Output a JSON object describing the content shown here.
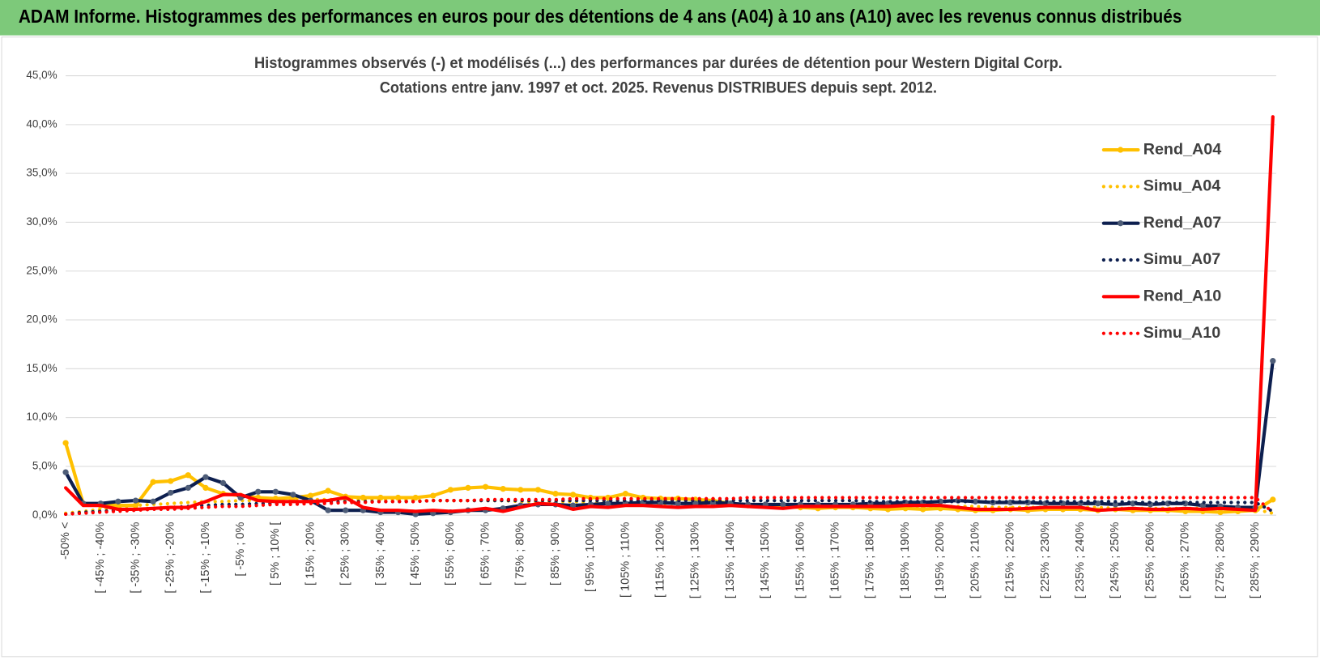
{
  "header": {
    "title": "ADAM Informe. Histogrammes des performances en euros pour des détentions de 4 ans (A04) à 10 ans (A10) avec les revenus connus distribués"
  },
  "chart_data": {
    "type": "line",
    "title": "Histogrammes observés (-) et modélisés (...) des performances par durées de détention pour Western Digital Corp.",
    "subtitle": "Cotations entre janv. 1997 et oct. 2025.  Revenus DISTRIBUES depuis sept. 2012.",
    "categories": [
      "-50% <",
      null,
      "[ -45% ; -40%",
      null,
      "[ -35% ; -30%",
      null,
      "[ -25% ; -20%",
      null,
      "[ -15% ; -10%",
      null,
      "[ -5% ; 0%",
      null,
      "[ 5% ; 10% [",
      null,
      "[ 15% ; 20%",
      null,
      "[ 25% ; 30%",
      null,
      "[ 35% ; 40%",
      null,
      "[ 45% ; 50%",
      null,
      "[ 55% ; 60%",
      null,
      "[ 65% ; 70%",
      null,
      "[ 75% ; 80%",
      null,
      "[ 85% ; 90%",
      null,
      "[ 95% ; 100%",
      null,
      "[ 105% ; 110%",
      null,
      "[ 115% ; 120%",
      null,
      "[ 125% ; 130%",
      null,
      "[ 135% ; 140%",
      null,
      "[ 145% ; 150%",
      null,
      "[ 155% ; 160%",
      null,
      "[ 165% ; 170%",
      null,
      "[ 175% ; 180%",
      null,
      "[ 185% ; 190%",
      null,
      "[ 195% ; 200%",
      null,
      "[ 205% ; 210%",
      null,
      "[ 215% ; 220%",
      null,
      "[ 225% ; 230%",
      null,
      "[ 235% ; 240%",
      null,
      "[ 245% ; 250%",
      null,
      "[ 255% ; 260%",
      null,
      "[ 265% ; 270%",
      null,
      "[ 275% ; 280%",
      null,
      "[ 285% ; 290%",
      null
    ],
    "series": [
      {
        "name": "Rend_A04",
        "color": "#ffc000",
        "dotted": false,
        "marker": true,
        "values": [
          7.4,
          1.2,
          1.0,
          1.0,
          1.0,
          3.4,
          3.5,
          4.1,
          2.8,
          2.2,
          2.0,
          1.8,
          1.7,
          1.8,
          2.0,
          2.5,
          1.9,
          1.8,
          1.8,
          1.8,
          1.8,
          2.0,
          2.6,
          2.8,
          2.9,
          2.7,
          2.6,
          2.6,
          2.2,
          2.1,
          1.8,
          1.8,
          2.2,
          1.8,
          1.7,
          1.7,
          1.6,
          1.5,
          1.2,
          1.0,
          1.0,
          0.9,
          0.8,
          0.7,
          0.8,
          0.8,
          0.7,
          0.6,
          0.7,
          0.6,
          0.7,
          0.6,
          0.5,
          0.5,
          0.6,
          0.5,
          0.6,
          0.6,
          0.6,
          0.5,
          0.6,
          0.5,
          0.5,
          0.5,
          0.4,
          0.4,
          0.3,
          0.4,
          0.5,
          1.6
        ]
      },
      {
        "name": "Simu_A04",
        "color": "#ffc000",
        "dotted": true,
        "marker": false,
        "values": [
          0.2,
          0.4,
          0.6,
          0.8,
          1.0,
          1.1,
          1.2,
          1.3,
          1.4,
          1.4,
          1.5,
          1.5,
          1.5,
          1.5,
          1.6,
          1.6,
          1.6,
          1.6,
          1.6,
          1.6,
          1.5,
          1.5,
          1.5,
          1.5,
          1.5,
          1.5,
          1.4,
          1.4,
          1.4,
          1.4,
          1.3,
          1.3,
          1.3,
          1.3,
          1.2,
          1.2,
          1.2,
          1.2,
          1.1,
          1.1,
          1.1,
          1.1,
          1.0,
          1.0,
          1.0,
          1.0,
          1.0,
          0.9,
          0.9,
          0.9,
          0.9,
          0.9,
          0.9,
          0.8,
          0.8,
          0.8,
          0.8,
          0.8,
          0.8,
          0.8,
          0.7,
          0.7,
          0.7,
          0.7,
          0.7,
          0.7,
          0.7,
          0.6,
          0.6,
          0.2
        ]
      },
      {
        "name": "Rend_A07",
        "color": "#0d1f4f",
        "dotted": false,
        "marker": true,
        "values": [
          4.4,
          1.2,
          1.2,
          1.4,
          1.5,
          1.4,
          2.3,
          2.8,
          3.9,
          3.3,
          1.8,
          2.4,
          2.4,
          2.1,
          1.5,
          0.5,
          0.5,
          0.5,
          0.3,
          0.3,
          0.1,
          0.2,
          0.3,
          0.5,
          0.5,
          0.7,
          1.0,
          1.1,
          1.1,
          1.0,
          1.1,
          1.2,
          1.2,
          1.3,
          1.3,
          1.2,
          1.2,
          1.3,
          1.2,
          1.1,
          1.1,
          1.1,
          1.1,
          1.1,
          1.1,
          1.1,
          1.2,
          1.2,
          1.3,
          1.3,
          1.4,
          1.5,
          1.4,
          1.3,
          1.3,
          1.3,
          1.2,
          1.2,
          1.2,
          1.2,
          1.1,
          1.2,
          1.1,
          1.2,
          1.2,
          1.0,
          0.9,
          0.8,
          0.8,
          15.8
        ]
      },
      {
        "name": "Simu_A07",
        "color": "#0d1f4f",
        "dotted": true,
        "marker": false,
        "values": [
          0.1,
          0.3,
          0.4,
          0.5,
          0.6,
          0.7,
          0.8,
          0.9,
          1.0,
          1.1,
          1.1,
          1.2,
          1.2,
          1.3,
          1.3,
          1.3,
          1.4,
          1.4,
          1.4,
          1.4,
          1.4,
          1.5,
          1.5,
          1.5,
          1.5,
          1.5,
          1.5,
          1.5,
          1.5,
          1.5,
          1.5,
          1.5,
          1.5,
          1.5,
          1.5,
          1.5,
          1.5,
          1.5,
          1.5,
          1.5,
          1.5,
          1.5,
          1.5,
          1.5,
          1.5,
          1.5,
          1.4,
          1.4,
          1.4,
          1.4,
          1.4,
          1.4,
          1.4,
          1.4,
          1.4,
          1.4,
          1.4,
          1.4,
          1.4,
          1.4,
          1.4,
          1.3,
          1.3,
          1.3,
          1.3,
          1.3,
          1.3,
          1.3,
          1.3,
          0.4
        ]
      },
      {
        "name": "Rend_A10",
        "color": "#ff0000",
        "dotted": false,
        "marker": false,
        "values": [
          2.8,
          1.0,
          1.0,
          0.6,
          0.6,
          0.7,
          0.8,
          0.8,
          1.4,
          2.1,
          2.1,
          1.5,
          1.4,
          1.4,
          1.4,
          1.5,
          1.8,
          0.8,
          0.5,
          0.5,
          0.4,
          0.5,
          0.4,
          0.5,
          0.7,
          0.4,
          0.8,
          1.2,
          1.1,
          0.6,
          0.9,
          0.8,
          1.0,
          1.0,
          0.9,
          0.8,
          0.9,
          0.9,
          1.0,
          0.9,
          0.8,
          0.7,
          0.9,
          0.9,
          0.9,
          0.9,
          0.9,
          0.9,
          1.0,
          1.0,
          1.0,
          0.8,
          0.6,
          0.6,
          0.6,
          0.7,
          0.8,
          0.8,
          0.8,
          0.5,
          0.6,
          0.7,
          0.6,
          0.6,
          0.7,
          0.6,
          0.7,
          0.6,
          0.5,
          40.8
        ]
      },
      {
        "name": "Simu_A10",
        "color": "#ff0000",
        "dotted": true,
        "marker": false,
        "values": [
          0.1,
          0.2,
          0.3,
          0.4,
          0.5,
          0.6,
          0.6,
          0.7,
          0.8,
          0.9,
          0.9,
          1.0,
          1.1,
          1.1,
          1.2,
          1.2,
          1.3,
          1.3,
          1.4,
          1.4,
          1.4,
          1.5,
          1.5,
          1.5,
          1.6,
          1.6,
          1.6,
          1.6,
          1.6,
          1.7,
          1.7,
          1.7,
          1.7,
          1.7,
          1.7,
          1.7,
          1.7,
          1.7,
          1.7,
          1.8,
          1.8,
          1.8,
          1.8,
          1.8,
          1.8,
          1.8,
          1.8,
          1.8,
          1.8,
          1.8,
          1.8,
          1.8,
          1.8,
          1.8,
          1.8,
          1.8,
          1.8,
          1.8,
          1.8,
          1.8,
          1.8,
          1.8,
          1.8,
          1.8,
          1.8,
          1.8,
          1.8,
          1.8,
          1.8,
          0.3
        ]
      }
    ],
    "ylim": [
      0,
      45
    ],
    "yticks": [
      {
        "value": 0,
        "label": "0,0%"
      },
      {
        "value": 5,
        "label": "5,0%"
      },
      {
        "value": 10,
        "label": "10,0%"
      },
      {
        "value": 15,
        "label": "15,0%"
      },
      {
        "value": 20,
        "label": "20,0%"
      },
      {
        "value": 25,
        "label": "25,0%"
      },
      {
        "value": 30,
        "label": "30,0%"
      },
      {
        "value": 35,
        "label": "35,0%"
      },
      {
        "value": 40,
        "label": "40,0%"
      },
      {
        "value": 45,
        "label": "45,0%"
      }
    ],
    "grid": true,
    "legend": "right"
  }
}
